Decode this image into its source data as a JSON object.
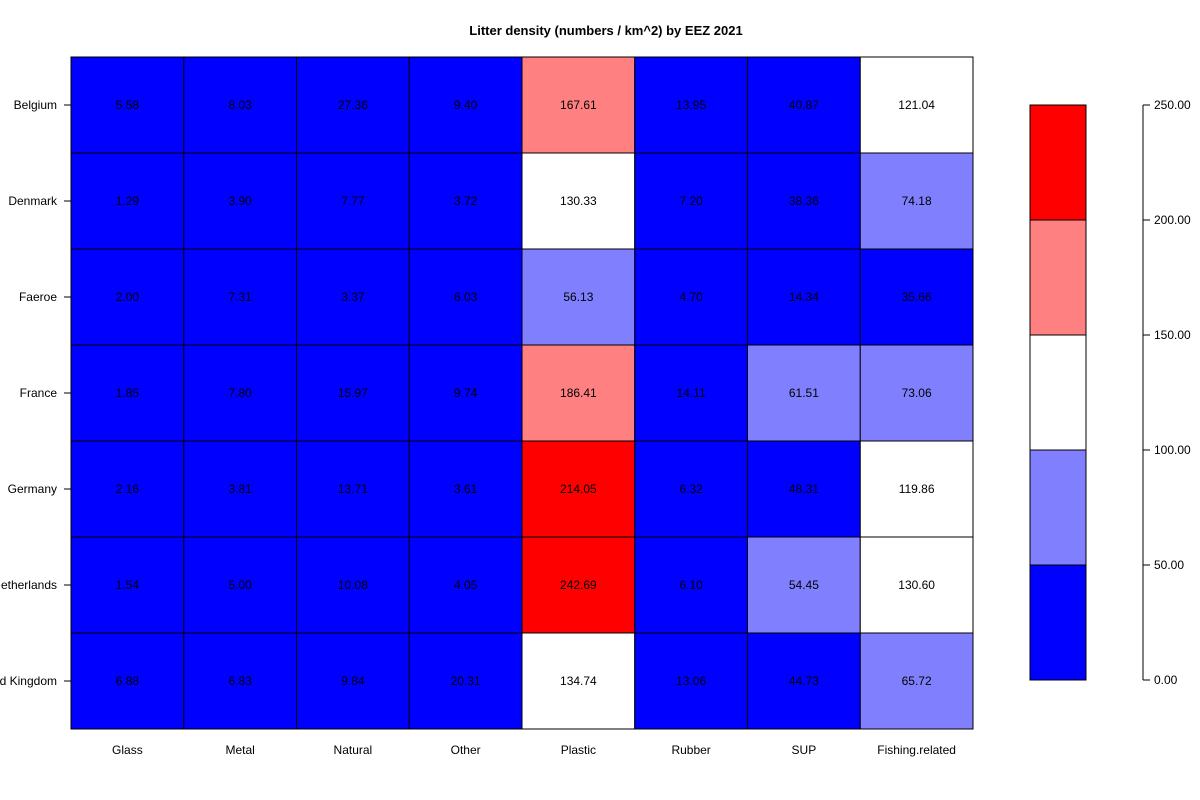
{
  "chart_data": {
    "type": "heatmap",
    "title": "Litter density (numbers / km^2) by EEZ 2021",
    "xlabel": "",
    "ylabel": "",
    "columns": [
      "Glass",
      "Metal",
      "Natural",
      "Other",
      "Plastic",
      "Rubber",
      "SUP",
      "Fishing.related"
    ],
    "rows": [
      "Belgium",
      "Denmark",
      "Faeroe",
      "France",
      "Germany",
      "Netherlands",
      "United Kingdom"
    ],
    "values": [
      [
        5.58,
        8.03,
        27.36,
        9.4,
        167.61,
        13.95,
        40.87,
        121.04
      ],
      [
        1.29,
        3.9,
        7.77,
        3.72,
        130.33,
        7.2,
        38.36,
        74.18
      ],
      [
        2.0,
        7.31,
        3.37,
        6.03,
        56.13,
        4.7,
        14.34,
        35.66
      ],
      [
        1.85,
        7.8,
        15.97,
        9.74,
        186.41,
        14.11,
        61.51,
        73.06
      ],
      [
        2.16,
        3.81,
        13.71,
        3.61,
        214.05,
        6.32,
        48.31,
        119.86
      ],
      [
        1.54,
        5.0,
        10.08,
        4.05,
        242.69,
        6.1,
        54.45,
        130.6
      ],
      [
        6.88,
        6.83,
        9.84,
        20.31,
        134.74,
        13.06,
        44.73,
        65.72
      ]
    ],
    "cell_labels": [
      [
        "5.58",
        "8.03",
        "27.36",
        "9.40",
        "167.61",
        "13.95",
        "40.87",
        "121.04"
      ],
      [
        "1.29",
        "3.90",
        "7.77",
        "3.72",
        "130.33",
        "7.20",
        "38.36",
        "74.18"
      ],
      [
        "2.00",
        "7.31",
        "3.37",
        "6.03",
        "56.13",
        "4.70",
        "14.34",
        "35.66"
      ],
      [
        "1.85",
        "7.80",
        "15.97",
        "9.74",
        "186.41",
        "14.11",
        "61.51",
        "73.06"
      ],
      [
        "2.16",
        "3.81",
        "13.71",
        "3.61",
        "214.05",
        "6.32",
        "48.31",
        "119.86"
      ],
      [
        "1.54",
        "5.00",
        "10.08",
        "4.05",
        "242.69",
        "6.10",
        "54.45",
        "130.60"
      ],
      [
        "6.88",
        "6.83",
        "9.84",
        "20.31",
        "134.74",
        "13.06",
        "44.73",
        "65.72"
      ]
    ],
    "legend": {
      "placement": "right",
      "breaks": [
        0,
        50,
        100,
        150,
        200,
        250
      ],
      "colors": [
        "#0000FF",
        "#8080FF",
        "#FFFFFF",
        "#FF8080",
        "#FF0000"
      ],
      "tick_labels": [
        "0.00",
        "50.00",
        "100.00",
        "150.00",
        "200.00",
        "250.00"
      ]
    },
    "grid": false
  }
}
